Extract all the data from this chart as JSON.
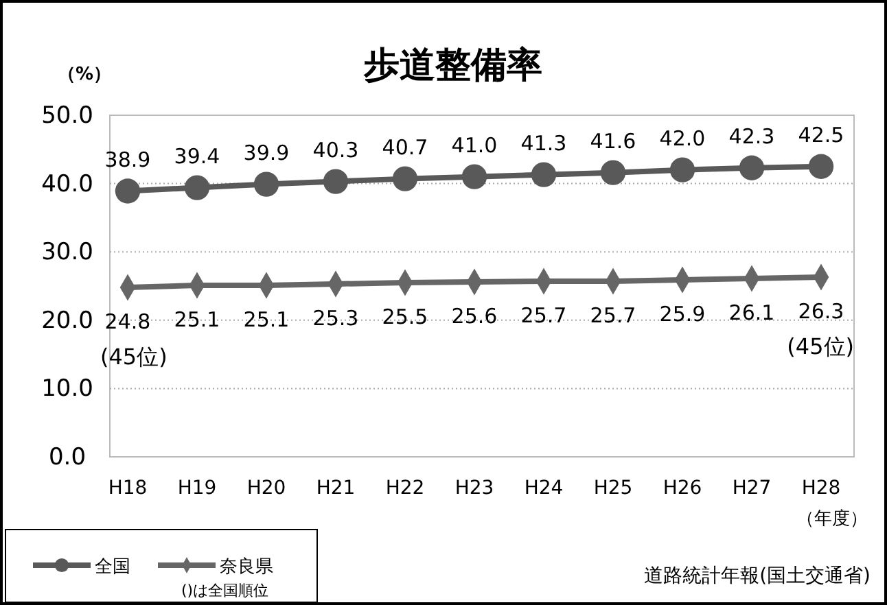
{
  "chart_data": {
    "type": "line",
    "title": "歩道整備率",
    "ylabel": "（%）",
    "xlabel": "（年度）",
    "categories": [
      "H18",
      "H19",
      "H20",
      "H21",
      "H22",
      "H23",
      "H24",
      "H25",
      "H26",
      "H27",
      "H28"
    ],
    "series": [
      {
        "name": "全国",
        "color": "#595959",
        "marker": "circle",
        "values": [
          38.9,
          39.4,
          39.9,
          40.3,
          40.7,
          41.0,
          41.3,
          41.6,
          42.0,
          42.3,
          42.5
        ],
        "value_labels": [
          "38.9",
          "39.4",
          "39.9",
          "40.3",
          "40.7",
          "41.0",
          "41.3",
          "41.6",
          "42.0",
          "42.3",
          "42.5"
        ]
      },
      {
        "name": "奈良県",
        "color": "#666666",
        "marker": "diamond",
        "values": [
          24.8,
          25.1,
          25.1,
          25.3,
          25.5,
          25.6,
          25.7,
          25.7,
          25.9,
          26.1,
          26.3
        ],
        "value_labels": [
          "24.8",
          "25.1",
          "25.1",
          "25.3",
          "25.5",
          "25.6",
          "25.7",
          "25.7",
          "25.9",
          "26.1",
          "26.3"
        ]
      }
    ],
    "ylim": [
      0,
      50
    ],
    "yticks": [
      {
        "value": 0,
        "label": "0.0"
      },
      {
        "value": 10,
        "label": "10.0"
      },
      {
        "value": 20,
        "label": "20.0"
      },
      {
        "value": 30,
        "label": "30.0"
      },
      {
        "value": 40,
        "label": "40.0"
      },
      {
        "value": 50,
        "label": "50.0"
      }
    ],
    "grid": "y",
    "legend": "bottom left",
    "line_style": "solid",
    "annotations": [
      {
        "text": "(45位)",
        "x": "H18",
        "y": 24.8
      },
      {
        "text": "(45位)",
        "x": "H28",
        "y": 26.3
      },
      "()は全国順位",
      "道路統計年報(国土交通省)"
    ]
  }
}
